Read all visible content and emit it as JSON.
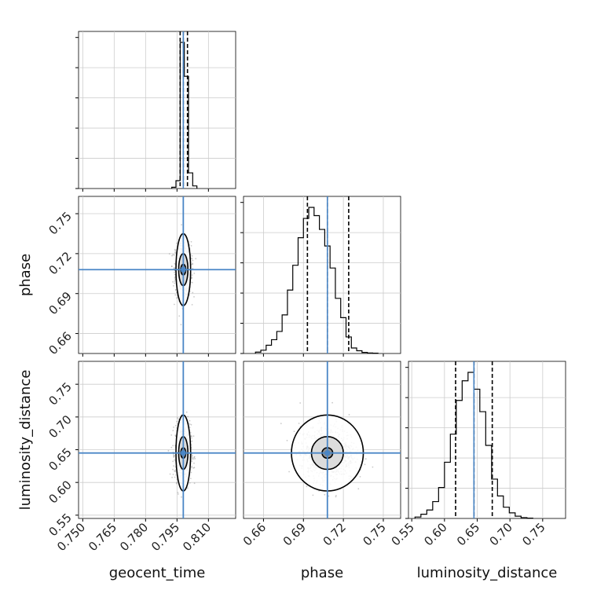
{
  "chart_data": {
    "type": "corner",
    "parameters": [
      {
        "name": "geocent_time",
        "axis_label": "geocent_time",
        "range": [
          0.748,
          0.823
        ],
        "ticks": [
          "0.750",
          "0.765",
          "0.780",
          "0.795",
          "0.810"
        ],
        "truth": 0.798,
        "quantiles": [
          0.7965,
          0.798,
          0.8
        ],
        "histogram": {
          "edges": [
            0.7925,
            0.7945,
            0.7965,
            0.7985,
            0.8005,
            0.8025,
            0.8045
          ],
          "counts": [
            0.05,
            0.3,
            5.6,
            4.3,
            0.6,
            0.1
          ]
        }
      },
      {
        "name": "phase",
        "axis_label": "phase",
        "range": [
          0.645,
          0.763
        ],
        "ticks": [
          "0.66",
          "0.69",
          "0.72",
          "0.75"
        ],
        "truth": 0.708,
        "quantiles": [
          0.693,
          0.708,
          0.724
        ],
        "histogram": {
          "edges": [
            0.654,
            0.658,
            0.662,
            0.666,
            0.67,
            0.674,
            0.678,
            0.682,
            0.686,
            0.69,
            0.694,
            0.698,
            0.702,
            0.706,
            0.71,
            0.714,
            0.718,
            0.722,
            0.726,
            0.73,
            0.734,
            0.738,
            0.742,
            0.746
          ],
          "counts": [
            0.05,
            0.12,
            0.3,
            0.5,
            0.8,
            1.4,
            2.3,
            3.2,
            4.2,
            4.9,
            5.3,
            5.0,
            4.5,
            3.9,
            3.1,
            2.0,
            1.3,
            0.6,
            0.2,
            0.1,
            0.04,
            0.02,
            0.01
          ]
        }
      },
      {
        "name": "luminosity_distance",
        "axis_label": "luminosity_distance",
        "range": [
          0.545,
          0.785
        ],
        "ticks": [
          "0.55",
          "0.60",
          "0.65",
          "0.70",
          "0.75"
        ],
        "truth": 0.645,
        "quantiles": [
          0.617,
          0.645,
          0.673
        ],
        "histogram": {
          "edges": [
            0.555,
            0.564,
            0.573,
            0.582,
            0.591,
            0.6,
            0.609,
            0.618,
            0.627,
            0.636,
            0.645,
            0.654,
            0.663,
            0.672,
            0.681,
            0.69,
            0.699,
            0.708,
            0.717,
            0.726,
            0.735
          ],
          "counts": [
            0.05,
            0.15,
            0.3,
            0.6,
            1.1,
            2.0,
            3.0,
            4.2,
            4.9,
            5.2,
            4.6,
            3.8,
            2.6,
            1.4,
            0.8,
            0.4,
            0.2,
            0.08,
            0.03,
            0.01
          ]
        }
      }
    ],
    "joint_2d": [
      {
        "x": "geocent_time",
        "y": "phase",
        "center": [
          0.798,
          0.708
        ],
        "contour_halfwidths": [
          [
            0.0012,
            0.004
          ],
          [
            0.0022,
            0.012
          ],
          [
            0.0035,
            0.027
          ]
        ]
      },
      {
        "x": "geocent_time",
        "y": "luminosity_distance",
        "center": [
          0.798,
          0.645
        ],
        "contour_halfwidths": [
          [
            0.0012,
            0.008
          ],
          [
            0.0022,
            0.025
          ],
          [
            0.0035,
            0.058
          ]
        ]
      },
      {
        "x": "phase",
        "y": "luminosity_distance",
        "center": [
          0.708,
          0.645
        ],
        "contour_halfwidths": [
          [
            0.004,
            0.008
          ],
          [
            0.012,
            0.025
          ],
          [
            0.027,
            0.058
          ]
        ]
      }
    ],
    "truth_color": "#4a86c6",
    "grid": true,
    "colors": {
      "hist": "#000000",
      "quantile_line": "#000000",
      "grid": "#cccccc",
      "scatter": "#666666",
      "contour_fill": "#444444"
    }
  }
}
